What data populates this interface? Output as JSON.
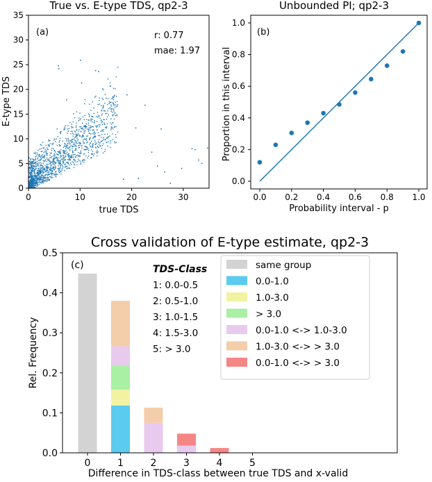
{
  "chart_data": [
    {
      "panel": "(a)",
      "type": "scatter",
      "title": "True vs. E-type TDS, qp2-3",
      "xlabel": "true TDS",
      "ylabel": "E-type TDS",
      "xlim": [
        0,
        35
      ],
      "ylim": [
        0,
        35
      ],
      "xticks": [
        "0",
        "10",
        "20",
        "30"
      ],
      "yticks": [
        "0",
        "5",
        "10",
        "15",
        "20",
        "25",
        "30",
        "35"
      ],
      "stats": [
        "r: 0.77",
        "mae: 1.97"
      ],
      "color": "#1f77b4",
      "outliers": [
        [
          5.8,
          24.8
        ],
        [
          5.9,
          24.2
        ],
        [
          10.1,
          25.9
        ],
        [
          13.0,
          23.8
        ],
        [
          13.6,
          23.6
        ],
        [
          10.3,
          21.3
        ],
        [
          19.1,
          18.9
        ],
        [
          7.4,
          17.9
        ],
        [
          22.6,
          16.8
        ],
        [
          20.8,
          12.2
        ],
        [
          25.7,
          12.0
        ],
        [
          23.9,
          7.3
        ],
        [
          31.7,
          8.0
        ],
        [
          32.3,
          7.8
        ],
        [
          34.7,
          8.1
        ],
        [
          29.7,
          4.0
        ],
        [
          33.0,
          5.7
        ],
        [
          33.6,
          5.0
        ],
        [
          25.0,
          4.5
        ],
        [
          26.4,
          3.3
        ],
        [
          21.3,
          2.0
        ],
        [
          18.4,
          1.8
        ],
        [
          27.5,
          1.0
        ]
      ]
    },
    {
      "panel": "(b)",
      "type": "line+scatter",
      "title": "Unbounded PI; qp2-3",
      "xlabel": "Probability interval - p",
      "ylabel": "Proportion in this interval",
      "xlim": [
        0,
        1
      ],
      "ylim": [
        0,
        1
      ],
      "xticks": [
        "0.0",
        "0.2",
        "0.4",
        "0.6",
        "0.8",
        "1.0"
      ],
      "yticks": [
        "0.0",
        "0.2",
        "0.4",
        "0.6",
        "0.8",
        "1.0"
      ],
      "x": [
        0.0,
        0.1,
        0.2,
        0.3,
        0.4,
        0.5,
        0.6,
        0.7,
        0.8,
        0.9,
        1.0
      ],
      "y": [
        0.12,
        0.23,
        0.305,
        0.37,
        0.43,
        0.485,
        0.56,
        0.645,
        0.73,
        0.82,
        1.0
      ],
      "reference_line": [
        [
          0,
          0
        ],
        [
          1,
          1
        ]
      ],
      "color": "#1f77b4"
    },
    {
      "panel": "(c)",
      "type": "bar",
      "stacked": true,
      "title": "Cross validation of E-type estimate, qp2-3",
      "xlabel": "Difference in TDS-class between true TDS and x-valid",
      "ylabel": "Rel. Frequency",
      "categories": [
        "0",
        "1",
        "2",
        "3",
        "4",
        "5"
      ],
      "ylim": [
        0,
        0.5
      ],
      "yticks": [
        "0.0",
        "0.1",
        "0.2",
        "0.3",
        "0.4",
        "0.5"
      ],
      "series": [
        {
          "name": "same group",
          "color": "#d3d3d3",
          "values": [
            0.448,
            0,
            0,
            0,
            0,
            0
          ]
        },
        {
          "name": "0.0-1.0",
          "color": "#5bcbef",
          "values": [
            0,
            0.118,
            0,
            0,
            0,
            0
          ]
        },
        {
          "name": "1.0-3.0",
          "color": "#f2f2a3",
          "values": [
            0,
            0.04,
            0,
            0,
            0,
            0
          ]
        },
        {
          "name": "> 3.0",
          "color": "#a9efa4",
          "values": [
            0,
            0.06,
            0,
            0,
            0,
            0
          ]
        },
        {
          "name": "0.0-1.0 <-> 1.0-3.0",
          "color": "#e8caef",
          "values": [
            0,
            0.048,
            0.075,
            0.018,
            0,
            0
          ]
        },
        {
          "name": "1.0-3.0 <-> > 3.0",
          "color": "#f4ceaa",
          "values": [
            0,
            0.114,
            0.038,
            0,
            0,
            0
          ]
        },
        {
          "name": "0.0-1.0 <-> > 3.0",
          "color": "#f58686",
          "values": [
            0,
            0,
            0,
            0.03,
            0.012,
            0
          ]
        }
      ],
      "class_box": {
        "heading": "TDS-Class",
        "lines": [
          "1: 0.0-0.5",
          "2: 0.5-1.0",
          "3: 1.0-1.5",
          "4: 1.5-3.0",
          "5: > 3.0"
        ]
      }
    }
  ]
}
